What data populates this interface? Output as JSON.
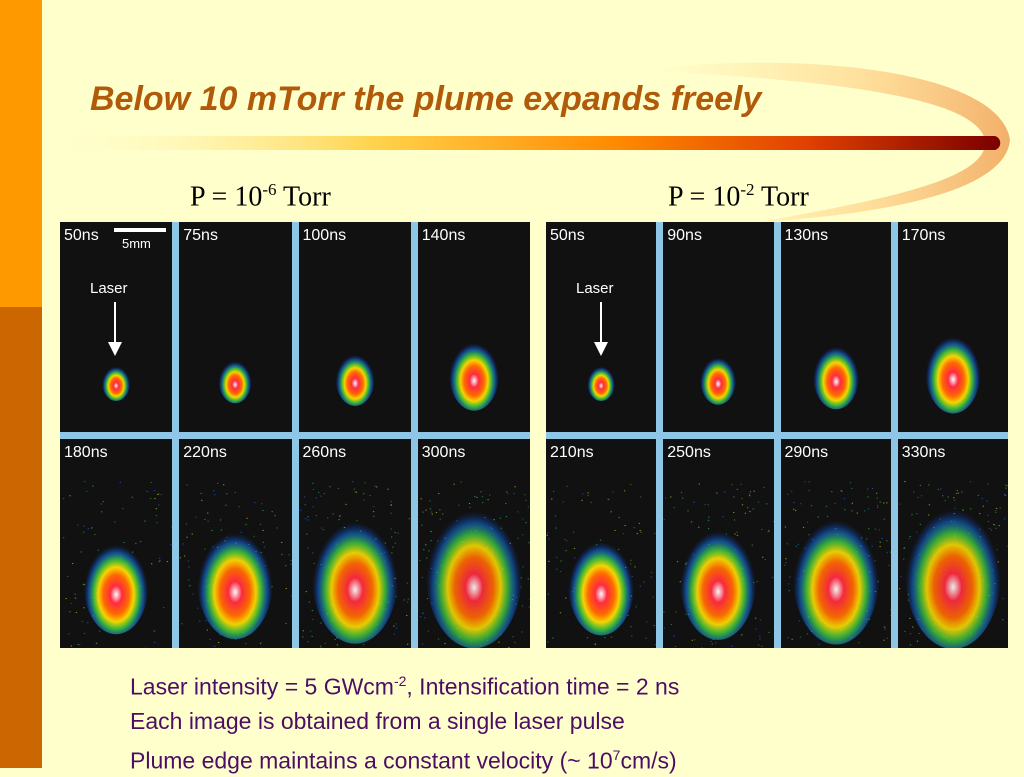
{
  "title": "Below 10 mTorr the plume expands freely",
  "groups": [
    {
      "pressure_prefix": "P = 10",
      "pressure_exp": "-6",
      "pressure_suffix": " Torr",
      "panels": [
        {
          "time": "50ns",
          "spread": 0.12
        },
        {
          "time": "75ns",
          "spread": 0.18
        },
        {
          "time": "100ns",
          "spread": 0.25
        },
        {
          "time": "140ns",
          "spread": 0.38
        },
        {
          "time": "180ns",
          "spread": 0.55
        },
        {
          "time": "220ns",
          "spread": 0.68
        },
        {
          "time": "260ns",
          "spread": 0.8
        },
        {
          "time": "300ns",
          "spread": 0.92
        }
      ]
    },
    {
      "pressure_prefix": "P = 10",
      "pressure_exp": "-2",
      "pressure_suffix": " Torr",
      "panels": [
        {
          "time": "50ns",
          "spread": 0.12
        },
        {
          "time": "90ns",
          "spread": 0.22
        },
        {
          "time": "130ns",
          "spread": 0.34
        },
        {
          "time": "170ns",
          "spread": 0.45
        },
        {
          "time": "210ns",
          "spread": 0.58
        },
        {
          "time": "250ns",
          "spread": 0.7
        },
        {
          "time": "290ns",
          "spread": 0.82
        },
        {
          "time": "330ns",
          "spread": 0.94
        }
      ]
    }
  ],
  "laser_label": "Laser",
  "scale_label": "5mm",
  "captions": {
    "line1_a": "Laser intensity = 5 GWcm",
    "line1_exp": "-2",
    "line1_b": ", Intensification time = 2 ns",
    "line2": "Each image is obtained from a single laser pulse",
    "line3_a": "Plume edge maintains a constant velocity (~ 10",
    "line3_exp": "7",
    "line3_b": "cm/s)"
  },
  "colors": {
    "title": "#B05A0A",
    "caption": "#4D0D66",
    "panel_border": "#8EC6E6",
    "sidebar_top": "#FF9900",
    "sidebar_bottom": "#CC6600"
  }
}
